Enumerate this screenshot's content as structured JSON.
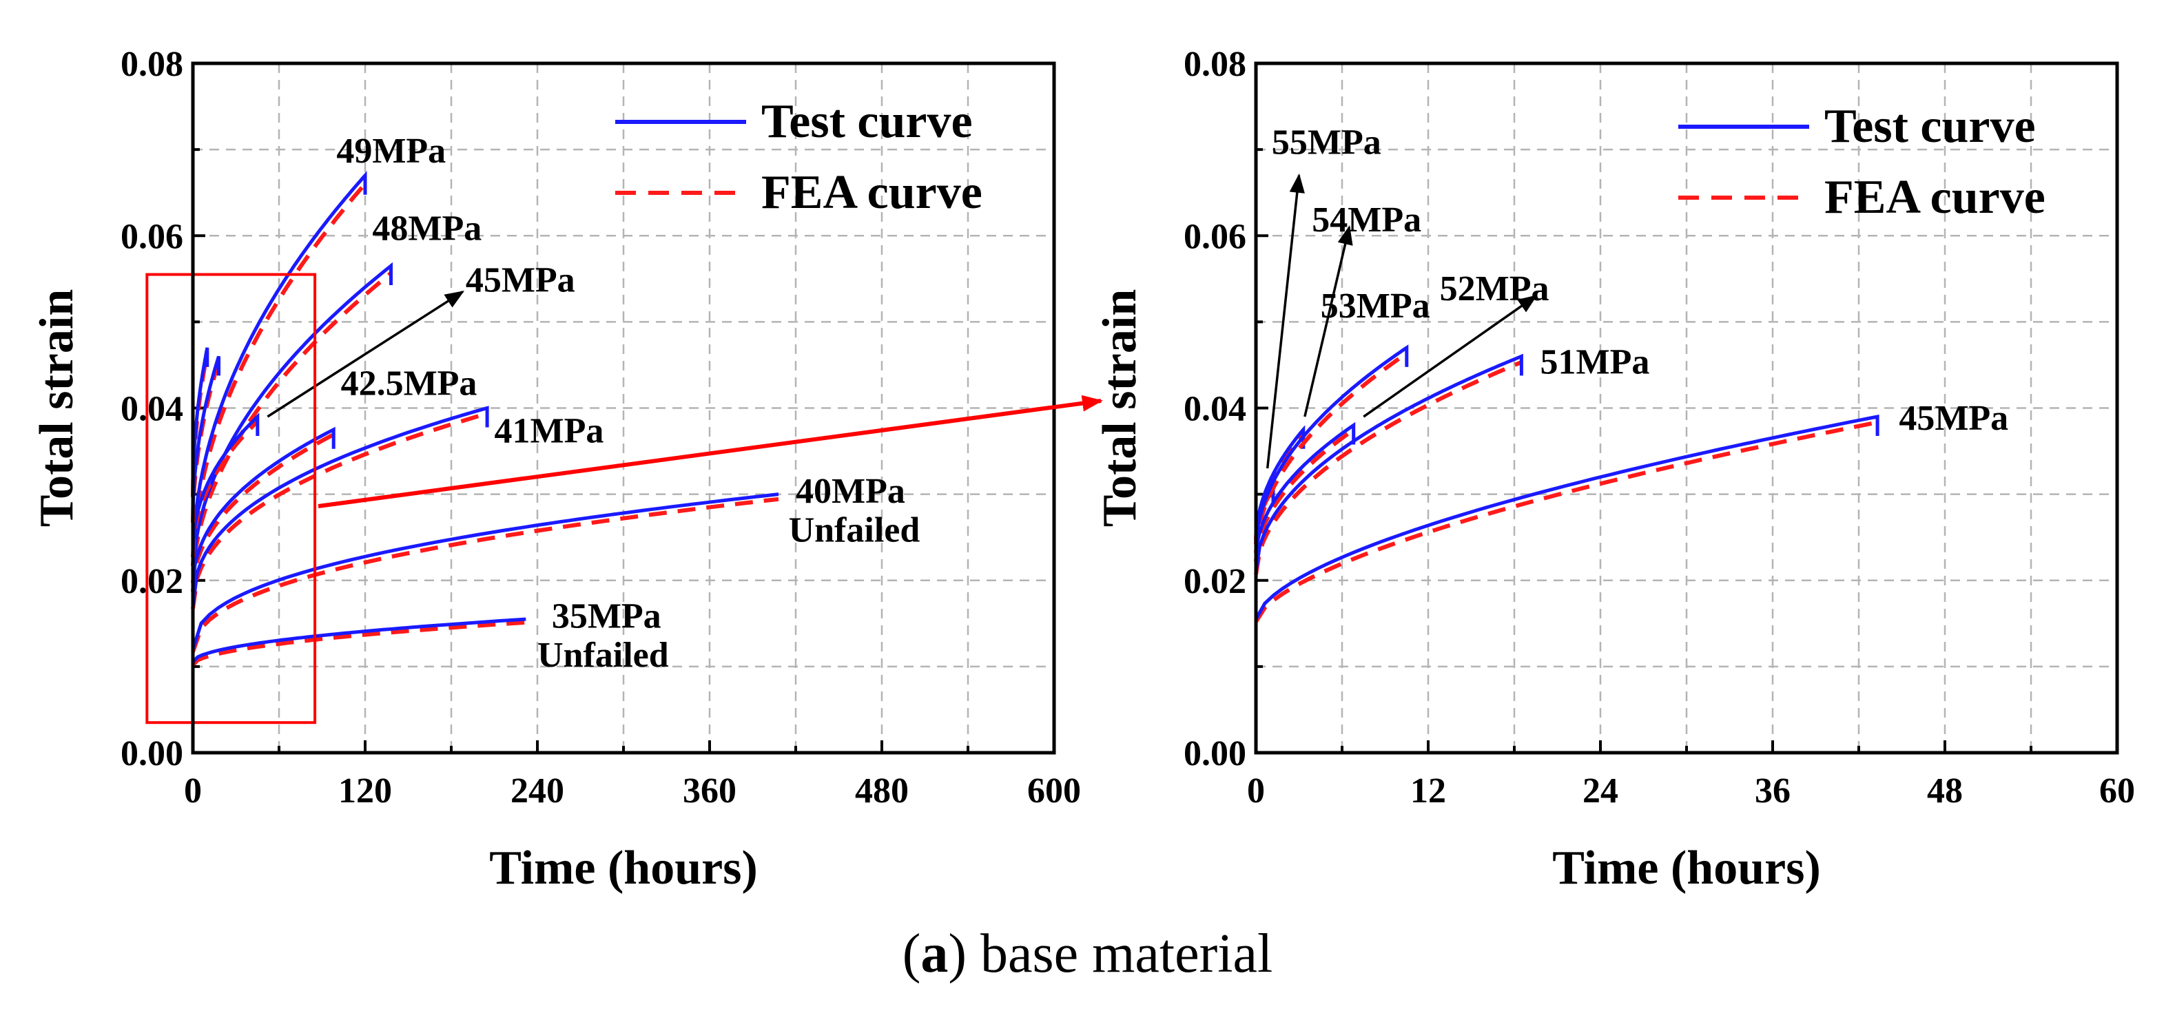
{
  "caption": {
    "letter": "a",
    "text": "base material"
  },
  "colors": {
    "test": "#1a1aff",
    "fea": "#ff1a1a",
    "grid": "#b4b4b4",
    "callout": "#ff0000"
  },
  "chart_data": [
    {
      "type": "line",
      "title": "",
      "xlabel": "Time (hours)",
      "ylabel": "Total strain",
      "xlim": [
        0,
        600
      ],
      "ylim": [
        0,
        0.08
      ],
      "xticks": [
        "0",
        "120",
        "240",
        "360",
        "480",
        "600"
      ],
      "yticks": [
        "0.00",
        "0.02",
        "0.04",
        "0.06",
        "0.08"
      ],
      "legend": [
        "Test curve",
        "FEA curve"
      ],
      "legend_position": "top-right",
      "grid": true,
      "series": [
        {
          "name": "49MPa",
          "x0": 0,
          "y0": 0.022,
          "x1": 120,
          "y1": 0.067,
          "shape": 0.5,
          "failed": true
        },
        {
          "name": "48MPa",
          "x0": 0,
          "y0": 0.02,
          "x1": 138,
          "y1": 0.0565,
          "shape": 0.5,
          "failed": true
        },
        {
          "name": "45MPa",
          "x0": 0,
          "y0": 0.023,
          "x1": 45,
          "y1": 0.039,
          "shape": 0.45,
          "failed": true
        },
        {
          "name": "42.5MPa",
          "x0": 0,
          "y0": 0.019,
          "x1": 98,
          "y1": 0.0375,
          "shape": 0.45,
          "failed": true
        },
        {
          "name": "41MPa",
          "x0": 0,
          "y0": 0.017,
          "x1": 205,
          "y1": 0.04,
          "shape": 0.42,
          "failed": true
        },
        {
          "name": "40MPa",
          "x0": 0,
          "y0": 0.012,
          "x1": 408,
          "y1": 0.03,
          "shape": 0.42,
          "failed": false
        },
        {
          "name": "35MPa",
          "x0": 0,
          "y0": 0.0105,
          "x1": 232,
          "y1": 0.0155,
          "shape": 0.5,
          "failed": false
        },
        {
          "name": "",
          "x0": 0,
          "y0": 0.03,
          "x1": 10,
          "y1": 0.047,
          "shape": 0.5,
          "failed": true
        },
        {
          "name": "",
          "x0": 0,
          "y0": 0.027,
          "x1": 18,
          "y1": 0.046,
          "shape": 0.5,
          "failed": true
        }
      ],
      "labels": [
        {
          "text": "49MPa",
          "x": 100,
          "y": 0.0685
        },
        {
          "text": "48MPa",
          "x": 125,
          "y": 0.0595
        },
        {
          "text": "45MPa",
          "x": 190,
          "y": 0.0535
        },
        {
          "text": "42.5MPa",
          "x": 103,
          "y": 0.0415
        },
        {
          "text": "41MPa",
          "x": 210,
          "y": 0.036
        },
        {
          "text": "40MPa",
          "x": 420,
          "y": 0.029
        },
        {
          "text": "Unfailed",
          "x": 415,
          "y": 0.0245
        },
        {
          "text": "35MPa",
          "x": 250,
          "y": 0.0145
        },
        {
          "text": "Unfailed",
          "x": 240,
          "y": 0.01
        }
      ],
      "arrows": [
        {
          "from": [
            52,
            0.039
          ],
          "to": [
            188,
            0.0535
          ]
        }
      ],
      "zoom_box": {
        "x": [
          -32,
          85
        ],
        "y": [
          0.0035,
          0.0555
        ]
      }
    },
    {
      "type": "line",
      "title": "",
      "xlabel": "Time (hours)",
      "ylabel": "Total strain",
      "xlim": [
        0,
        60
      ],
      "ylim": [
        0,
        0.08
      ],
      "xticks": [
        "0",
        "12",
        "24",
        "36",
        "48",
        "60"
      ],
      "yticks": [
        "0.00",
        "0.02",
        "0.04",
        "0.06",
        "0.08"
      ],
      "legend": [
        "Test curve",
        "FEA curve"
      ],
      "legend_position": "top-right",
      "grid": true,
      "series": [
        {
          "name": "55MPa",
          "x0": 0,
          "y0": 0.025,
          "x1": 1.2,
          "y1": 0.031,
          "shape": 0.5,
          "failed": true
        },
        {
          "name": "54MPa",
          "x0": 0,
          "y0": 0.0245,
          "x1": 3.3,
          "y1": 0.0375,
          "shape": 0.5,
          "failed": true
        },
        {
          "name": "53MPa",
          "x0": 0,
          "y0": 0.0235,
          "x1": 10.5,
          "y1": 0.047,
          "shape": 0.5,
          "failed": true
        },
        {
          "name": "52MPa",
          "x0": 0,
          "y0": 0.0225,
          "x1": 6.8,
          "y1": 0.038,
          "shape": 0.5,
          "failed": true
        },
        {
          "name": "51MPa",
          "x0": 0,
          "y0": 0.021,
          "x1": 18.5,
          "y1": 0.046,
          "shape": 0.5,
          "failed": true
        },
        {
          "name": "45MPa",
          "x0": 0,
          "y0": 0.0155,
          "x1": 43.3,
          "y1": 0.039,
          "shape": 0.6,
          "failed": true
        }
      ],
      "labels": [
        {
          "text": "55MPa",
          "x": 1.1,
          "y": 0.0695
        },
        {
          "text": "54MPa",
          "x": 3.9,
          "y": 0.0605
        },
        {
          "text": "53MPa",
          "x": 4.5,
          "y": 0.0505
        },
        {
          "text": "52MPa",
          "x": 12.8,
          "y": 0.0525
        },
        {
          "text": "51MPa",
          "x": 19.8,
          "y": 0.044
        },
        {
          "text": "45MPa",
          "x": 44.8,
          "y": 0.0375
        }
      ],
      "arrows": [
        {
          "from": [
            0.8,
            0.033
          ],
          "to": [
            3.0,
            0.067
          ]
        },
        {
          "from": [
            3.4,
            0.039
          ],
          "to": [
            6.5,
            0.061
          ]
        },
        {
          "from": [
            7.5,
            0.039
          ],
          "to": [
            19.5,
            0.053
          ]
        }
      ],
      "zoom_box": null
    }
  ]
}
